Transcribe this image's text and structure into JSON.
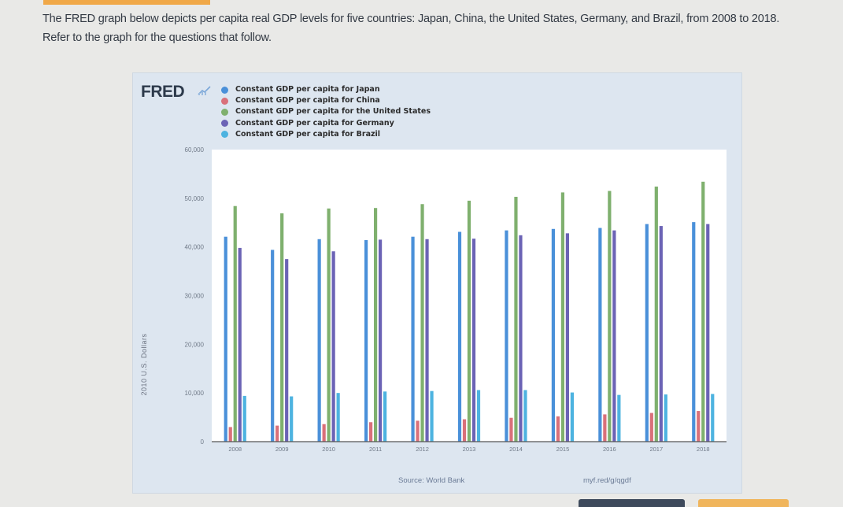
{
  "question": {
    "line1": "The FRED graph below depicts per capita real GDP levels for five countries: Japan, China, the United States, Germany, and Brazil, from 2008 to 2018.",
    "line2": "Refer to the graph for the questions that follow."
  },
  "fred": {
    "logo": "FRED",
    "source": "Source: World Bank",
    "shortlink": "myf.red/g/qgdf"
  },
  "chart_data": {
    "type": "bar",
    "title": "",
    "xlabel": "",
    "ylabel": "2010 U.S. Dollars",
    "ylim": [
      0,
      60000
    ],
    "yticks": [
      0,
      10000,
      20000,
      30000,
      40000,
      50000,
      60000
    ],
    "ytick_labels": [
      "0",
      "10,000",
      "20,000",
      "30,000",
      "40,000",
      "50,000",
      "60,000"
    ],
    "categories": [
      "2008",
      "2009",
      "2010",
      "2011",
      "2012",
      "2013",
      "2014",
      "2015",
      "2016",
      "2017",
      "2018"
    ],
    "legend_position": "top-left",
    "grid": false,
    "series": [
      {
        "name": "Constant GDP per capita for Japan",
        "color": "#4a90d9",
        "values": [
          42100,
          39400,
          41600,
          41400,
          42100,
          43100,
          43400,
          43700,
          43900,
          44700,
          45100
        ]
      },
      {
        "name": "Constant GDP per capita for China",
        "color": "#d9707a",
        "values": [
          3000,
          3300,
          3600,
          4000,
          4300,
          4600,
          4900,
          5200,
          5600,
          5900,
          6300
        ]
      },
      {
        "name": "Constant GDP per capita for the United States",
        "color": "#7fb06e",
        "values": [
          48400,
          46900,
          47900,
          48000,
          48800,
          49500,
          50300,
          51200,
          51500,
          52400,
          53400
        ]
      },
      {
        "name": "Constant GDP per capita for Germany",
        "color": "#6b63b5",
        "values": [
          39800,
          37500,
          39100,
          41500,
          41600,
          41700,
          42400,
          42800,
          43400,
          44300,
          44700
        ]
      },
      {
        "name": "Constant GDP per capita for Brazil",
        "color": "#4db3e0",
        "values": [
          9400,
          9300,
          10000,
          10300,
          10400,
          10600,
          10600,
          10100,
          9600,
          9700,
          9800
        ]
      }
    ]
  }
}
